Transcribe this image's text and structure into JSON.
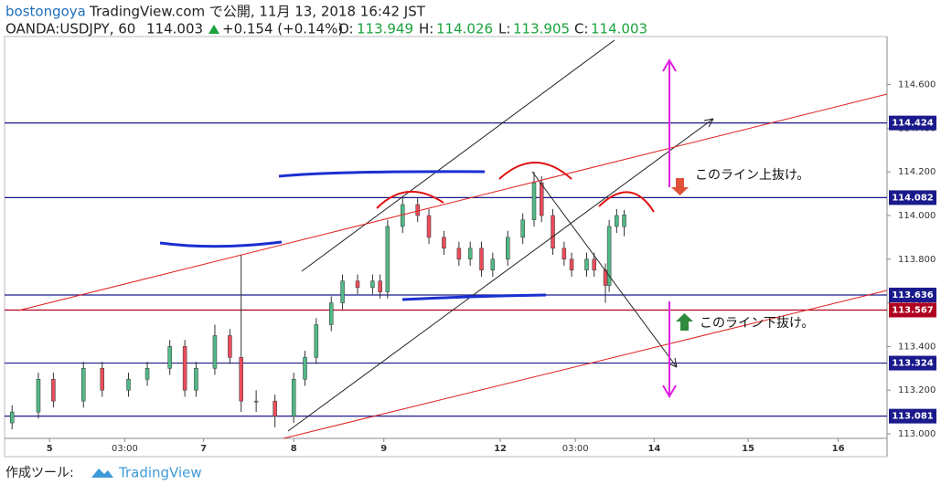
{
  "header": {
    "user": "bostongoya",
    "published": "TradingView.com で公開, 11月 13, 2018 16:42 JST",
    "symbol": "OANDA:USDJPY, 60",
    "last": "114.003",
    "change": "+0.154 (+0.14%)",
    "o_label": "O:",
    "o": "113.949",
    "h_label": "H:",
    "h": "114.026",
    "l_label": "L:",
    "l": "113.905",
    "c_label": "C:",
    "c": "114.003"
  },
  "footer": {
    "made_with": "作成ツール:",
    "brand": "TradingView"
  },
  "chart_data": {
    "type": "candlestick",
    "xlim": [
      0,
      235
    ],
    "xticks": [
      {
        "value": 12,
        "label": "5"
      },
      {
        "value": 32,
        "label": "03:00"
      },
      {
        "value": 53,
        "label": "7"
      },
      {
        "value": 77,
        "label": "8"
      },
      {
        "value": 101,
        "label": "9"
      },
      {
        "value": 132,
        "label": "12"
      },
      {
        "value": 152,
        "label": "03:00"
      },
      {
        "value": 173,
        "label": "14"
      },
      {
        "value": 198,
        "label": "15"
      },
      {
        "value": 222,
        "label": "16"
      }
    ],
    "ylim": [
      113.0,
      114.82
    ],
    "yticks": [
      {
        "value": 113.0,
        "label": "113.000"
      },
      {
        "value": 113.2,
        "label": "113.200"
      },
      {
        "value": 113.4,
        "label": "113.400"
      },
      {
        "value": 113.6,
        "label": "113.600"
      },
      {
        "value": 113.8,
        "label": "113.800"
      },
      {
        "value": 114.0,
        "label": "114.000"
      },
      {
        "value": 114.2,
        "label": "114.200"
      },
      {
        "value": 114.4,
        "label": "114.400"
      },
      {
        "value": 114.6,
        "label": "114.600"
      }
    ],
    "up_color": "#53b987",
    "down_color": "#eb4d5c",
    "x": [
      2,
      9,
      13,
      21,
      26,
      33,
      38,
      44,
      48,
      51,
      56,
      60,
      63,
      67,
      72,
      77,
      80,
      83,
      87,
      90,
      94,
      98,
      100,
      102,
      106,
      110,
      113,
      117,
      121,
      124,
      127,
      130,
      134,
      138,
      141,
      143,
      146,
      149,
      151,
      155,
      157,
      160,
      161,
      163,
      165
    ],
    "open": [
      113.05,
      113.1,
      113.25,
      113.15,
      113.3,
      113.2,
      113.25,
      113.3,
      113.4,
      113.2,
      113.3,
      113.45,
      113.35,
      113.15,
      113.15,
      113.08,
      113.25,
      113.35,
      113.5,
      113.6,
      113.7,
      113.67,
      113.7,
      113.65,
      113.95,
      114.05,
      114.0,
      113.9,
      113.85,
      113.8,
      113.85,
      113.75,
      113.8,
      113.9,
      113.98,
      114.15,
      114.0,
      113.85,
      113.8,
      113.75,
      113.8,
      113.75,
      113.68,
      113.95,
      113.949
    ],
    "high": [
      113.13,
      113.28,
      113.28,
      113.33,
      113.33,
      113.28,
      113.33,
      113.43,
      113.43,
      113.33,
      113.5,
      113.48,
      113.82,
      113.2,
      113.18,
      113.28,
      113.38,
      113.53,
      113.63,
      113.73,
      113.73,
      113.73,
      113.73,
      113.98,
      114.08,
      114.08,
      114.03,
      113.93,
      113.88,
      113.88,
      113.88,
      113.83,
      113.93,
      114.01,
      114.2,
      114.18,
      114.03,
      113.88,
      113.83,
      113.83,
      113.83,
      113.78,
      113.98,
      114.03,
      114.026
    ],
    "low": [
      113.02,
      113.07,
      113.12,
      113.12,
      113.17,
      113.17,
      113.22,
      113.27,
      113.17,
      113.17,
      113.27,
      113.32,
      113.1,
      113.1,
      113.03,
      113.05,
      113.22,
      113.32,
      113.47,
      113.57,
      113.64,
      113.64,
      113.62,
      113.62,
      113.92,
      113.97,
      113.87,
      113.82,
      113.77,
      113.77,
      113.72,
      113.72,
      113.77,
      113.87,
      113.95,
      113.97,
      113.82,
      113.77,
      113.72,
      113.72,
      113.72,
      113.6,
      113.65,
      113.92,
      113.905
    ],
    "close": [
      113.1,
      113.25,
      113.15,
      113.3,
      113.2,
      113.25,
      113.3,
      113.4,
      113.2,
      113.3,
      113.45,
      113.35,
      113.15,
      113.15,
      113.08,
      113.25,
      113.35,
      113.5,
      113.6,
      113.7,
      113.67,
      113.7,
      113.65,
      113.95,
      114.05,
      114.0,
      113.9,
      113.85,
      113.8,
      113.85,
      113.75,
      113.8,
      113.9,
      113.98,
      114.15,
      114.0,
      113.85,
      113.8,
      113.75,
      113.8,
      113.75,
      113.68,
      113.95,
      114.0,
      114.003
    ],
    "hlines": [
      {
        "value": 114.424,
        "color": "#1a1a8c"
      },
      {
        "value": 114.082,
        "color": "#1a1a8c"
      },
      {
        "value": 113.636,
        "color": "#1a1a8c"
      },
      {
        "value": 113.567,
        "color": "#b00020"
      },
      {
        "value": 113.324,
        "color": "#1a1a8c"
      },
      {
        "value": 113.081,
        "color": "#1a1a8c"
      }
    ],
    "annotations": [
      "このライン上抜け。",
      "このライン下抜け。"
    ]
  }
}
